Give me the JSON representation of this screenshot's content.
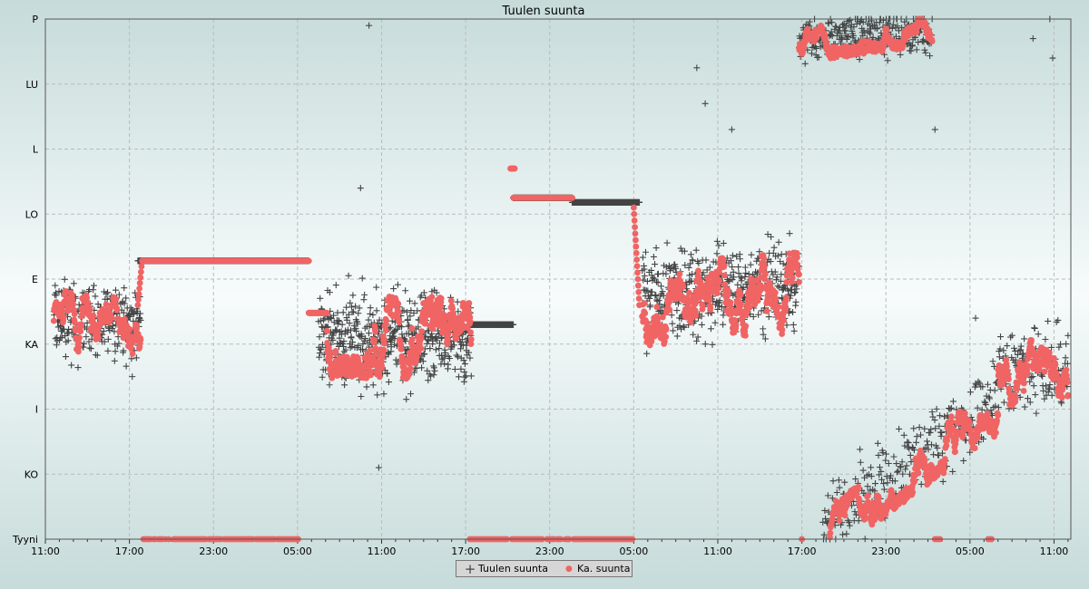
{
  "chart_data": {
    "type": "scatter",
    "title": "Tuulen suunta",
    "xlabel": "",
    "ylabel": "",
    "x_unit": "hours from first tick",
    "xlim": [
      0,
      73.2
    ],
    "x_ticks": [
      {
        "t": 0,
        "label": "11:00"
      },
      {
        "t": 6,
        "label": "17:00"
      },
      {
        "t": 12,
        "label": "23:00"
      },
      {
        "t": 18,
        "label": "05:00"
      },
      {
        "t": 24,
        "label": "11:00"
      },
      {
        "t": 30,
        "label": "17:00"
      },
      {
        "t": 36,
        "label": "23:00"
      },
      {
        "t": 42,
        "label": "05:00"
      },
      {
        "t": 48,
        "label": "11:00"
      },
      {
        "t": 54,
        "label": "17:00"
      },
      {
        "t": 60,
        "label": "23:00"
      },
      {
        "t": 66,
        "label": "05:00"
      },
      {
        "t": 72,
        "label": "11:00"
      }
    ],
    "ylim": [
      0,
      8
    ],
    "y_ticks": [
      "Tyyni",
      "KO",
      "I",
      "KA",
      "E",
      "LO",
      "L",
      "LU",
      "P"
    ],
    "grid": true,
    "legend_placement": "bottom-center",
    "series": [
      {
        "name": "Tuulen suunta",
        "marker": "plus",
        "color": "#444444",
        "segments_t0_t1_from_to_spread_perhour": [
          [
            0.6,
            6.8,
            3.35,
            3.3,
            0.6,
            40
          ],
          [
            6.6,
            18.8,
            4.28,
            4.28,
            0,
            60
          ],
          [
            19.5,
            30.4,
            3.1,
            3.1,
            0.75,
            45
          ],
          [
            30.2,
            33.4,
            3.3,
            3.3,
            0,
            60
          ],
          [
            33.4,
            37.6,
            5.25,
            5.25,
            0,
            60
          ],
          [
            37.6,
            42.4,
            5.18,
            5.18,
            0,
            60
          ],
          [
            42.6,
            53.8,
            3.7,
            3.9,
            0.75,
            40
          ],
          [
            53.8,
            63.3,
            7.7,
            7.8,
            0.35,
            30
          ],
          [
            55.5,
            68.0,
            0.2,
            2.2,
            0.6,
            22
          ],
          [
            68.0,
            73.0,
            2.6,
            2.6,
            0.65,
            28
          ]
        ],
        "outliers": [
          [
            23.1,
            7.9
          ],
          [
            22.5,
            5.4
          ],
          [
            6.2,
            2.5
          ],
          [
            23.8,
            1.1
          ],
          [
            46.5,
            7.25
          ],
          [
            47.1,
            6.7
          ],
          [
            49.0,
            6.3
          ],
          [
            63.5,
            6.3
          ],
          [
            70.5,
            7.7
          ],
          [
            71.7,
            8.0
          ],
          [
            71.9,
            7.4
          ],
          [
            66.4,
            3.4
          ]
        ]
      },
      {
        "name": "Ka. suunta",
        "marker": "circle",
        "color": "#f06464",
        "segments_t0_t1_from_to_spread_perhour": [
          [
            0.6,
            6.8,
            3.4,
            3.2,
            0.4,
            40
          ],
          [
            6.6,
            6.9,
            3.6,
            4.28,
            0,
            30
          ],
          [
            7.0,
            18.8,
            4.28,
            4.28,
            0,
            8
          ],
          [
            18.8,
            20.1,
            3.48,
            3.48,
            0,
            40
          ],
          [
            20.1,
            30.4,
            3.1,
            3.1,
            0.55,
            45
          ],
          [
            33.2,
            33.5,
            5.7,
            5.7,
            0,
            30
          ],
          [
            33.4,
            37.6,
            5.25,
            5.25,
            0,
            10
          ],
          [
            42.0,
            42.4,
            5.1,
            3.6,
            0,
            40
          ],
          [
            42.6,
            53.8,
            3.6,
            3.8,
            0.55,
            45
          ],
          [
            53.8,
            63.3,
            7.6,
            7.9,
            0.25,
            40
          ],
          [
            56.0,
            68.0,
            0.15,
            2.0,
            0.35,
            40
          ],
          [
            68.0,
            73.0,
            2.6,
            2.6,
            0.5,
            40
          ]
        ],
        "calm_runs": [
          [
            7.0,
            18.1
          ],
          [
            30.3,
            33.0
          ],
          [
            33.3,
            37.4
          ],
          [
            37.7,
            42.0
          ],
          [
            54.0,
            54.1
          ],
          [
            63.5,
            63.9
          ],
          [
            67.3,
            67.6
          ]
        ]
      }
    ]
  },
  "legend": {
    "items": [
      "Tuulen suunta",
      "Ka. suunta"
    ]
  }
}
